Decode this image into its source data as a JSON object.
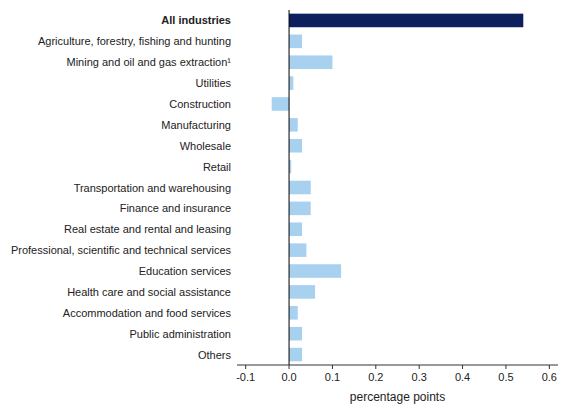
{
  "chart_data": {
    "type": "bar",
    "orientation": "horizontal",
    "categories": [
      "Others",
      "Public administration",
      "Accommodation and food services",
      "Health care and social assistance",
      "Education services",
      "Professional, scientific and technical services",
      "Real estate and rental and leasing",
      "Finance and insurance",
      "Transportation and warehousing",
      "Retail",
      "Wholesale",
      "Manufacturing",
      "Construction",
      "Utilities",
      "Mining and oil and gas extraction¹",
      "Agriculture, forestry, fishing and hunting",
      "All industries"
    ],
    "values": [
      0.03,
      0.03,
      0.02,
      0.06,
      0.12,
      0.04,
      0.03,
      0.05,
      0.05,
      0.005,
      0.03,
      0.02,
      -0.04,
      0.01,
      0.1,
      0.03,
      0.54
    ],
    "colors": [
      "#a8d1f0",
      "#a8d1f0",
      "#a8d1f0",
      "#a8d1f0",
      "#a8d1f0",
      "#a8d1f0",
      "#a8d1f0",
      "#a8d1f0",
      "#a8d1f0",
      "#a8d1f0",
      "#a8d1f0",
      "#a8d1f0",
      "#a8d1f0",
      "#a8d1f0",
      "#a8d1f0",
      "#a8d1f0",
      "#0d1f5c"
    ],
    "xlabel": "percentage points",
    "xlim": [
      -0.12,
      0.62
    ],
    "xticks": [
      -0.1,
      {
        "value": 0,
        "label": "0.0"
      },
      0.1,
      0.2,
      0.3,
      0.4,
      0.5,
      0.6
    ],
    "grid": false
  }
}
